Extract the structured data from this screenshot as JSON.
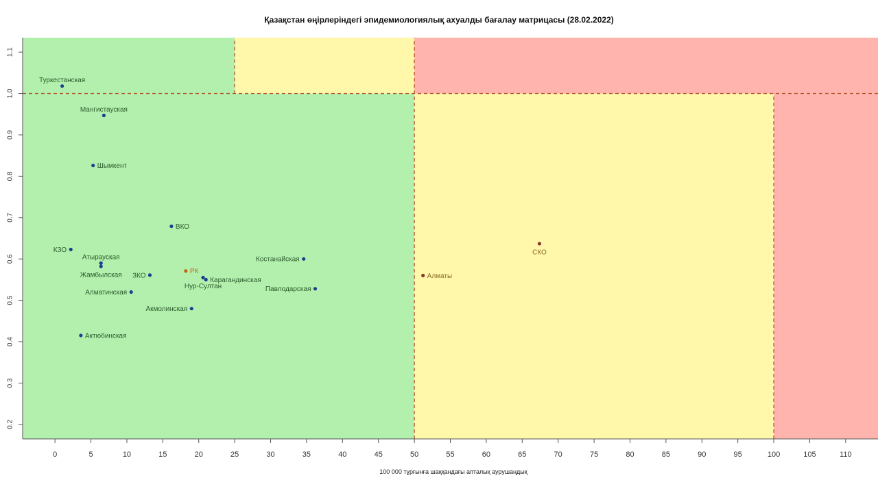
{
  "chart_data": {
    "type": "scatter",
    "title": "Қазақстан өңірлеріндегі эпидемиологиялық ахуалды бағалау матрицасы  (28.02.2022)",
    "xlabel": "100 000 тұрғынға шаққандағы апталық аурушаңдық",
    "ylabel": "",
    "xlim": [
      -4.5,
      114.5
    ],
    "ylim": [
      0.165,
      1.135
    ],
    "x_ticks": [
      0,
      5,
      10,
      15,
      20,
      25,
      30,
      35,
      40,
      45,
      50,
      55,
      60,
      65,
      70,
      75,
      80,
      85,
      90,
      95,
      100,
      105,
      110
    ],
    "y_ticks": [
      0.2,
      0.3,
      0.4,
      0.5,
      0.6,
      0.7,
      0.8,
      0.9,
      1.0,
      1.1
    ],
    "grid": false,
    "zones": [
      {
        "x": [
          -4.5,
          50
        ],
        "y": [
          0.165,
          1.0
        ],
        "color": "#b3f0ad"
      },
      {
        "x": [
          -4.5,
          25
        ],
        "y": [
          1.0,
          1.135
        ],
        "color": "#b3f0ad"
      },
      {
        "x": [
          25,
          50
        ],
        "y": [
          1.0,
          1.135
        ],
        "color": "#fff8aa"
      },
      {
        "x": [
          50,
          100
        ],
        "y": [
          0.165,
          1.0
        ],
        "color": "#fff8aa"
      },
      {
        "x": [
          50,
          114.5
        ],
        "y": [
          1.0,
          1.135
        ],
        "color": "#ffb5ae"
      },
      {
        "x": [
          100,
          114.5
        ],
        "y": [
          0.165,
          1.0
        ],
        "color": "#ffb5ae"
      }
    ],
    "dashed_lines": [
      {
        "orientation": "h",
        "value": 1.0,
        "from": -4.5,
        "to": 114.5
      },
      {
        "orientation": "v",
        "value": 25,
        "from": 1.0,
        "to": 1.135
      },
      {
        "orientation": "v",
        "value": 50,
        "from": 0.165,
        "to": 1.135
      },
      {
        "orientation": "v",
        "value": 100,
        "from": 0.165,
        "to": 1.0
      }
    ],
    "points": [
      {
        "label": "Туркестанская",
        "x": 1.0,
        "y": 1.018,
        "color": "#1a3f8f",
        "label_color": "#2b5a2b",
        "label_pos": "above"
      },
      {
        "label": "Мангистауская",
        "x": 6.8,
        "y": 0.947,
        "color": "#1a3f8f",
        "label_color": "#2b5a2b",
        "label_pos": "above"
      },
      {
        "label": "Шымкент",
        "x": 5.3,
        "y": 0.826,
        "color": "#1a3f8f",
        "label_color": "#2b5a2b",
        "label_pos": "right"
      },
      {
        "label": "ВКО",
        "x": 16.2,
        "y": 0.679,
        "color": "#1a3f8f",
        "label_color": "#2b5a2b",
        "label_pos": "right"
      },
      {
        "label": "КЗО",
        "x": 2.2,
        "y": 0.623,
        "color": "#1a3f8f",
        "label_color": "#2b5a2b",
        "label_pos": "left"
      },
      {
        "label": "Атырауская",
        "x": 6.4,
        "y": 0.59,
        "color": "#1a3f8f",
        "label_color": "#2b5a2b",
        "label_pos": "above"
      },
      {
        "label": "Жамбылская",
        "x": 6.4,
        "y": 0.582,
        "color": "#1a3f8f",
        "label_color": "#2b5a2b",
        "label_pos": "below"
      },
      {
        "label": "Костанайская",
        "x": 34.6,
        "y": 0.6,
        "color": "#1a3f8f",
        "label_color": "#2b5a2b",
        "label_pos": "left"
      },
      {
        "label": "РК",
        "x": 18.2,
        "y": 0.571,
        "color": "#c0651e",
        "label_color": "#c0651e",
        "label_pos": "right"
      },
      {
        "label": "ЗКО",
        "x": 13.2,
        "y": 0.561,
        "color": "#1a3f8f",
        "label_color": "#2b5a2b",
        "label_pos": "left"
      },
      {
        "label": "Карагандинская",
        "x": 21.0,
        "y": 0.55,
        "color": "#1a3f8f",
        "label_color": "#2b5a2b",
        "label_pos": "right"
      },
      {
        "label": "Нур-Султан",
        "x": 20.6,
        "y": 0.555,
        "color": "#1a3f8f",
        "label_color": "#2b5a2b",
        "label_pos": "below"
      },
      {
        "label": "Павлодарская",
        "x": 36.2,
        "y": 0.528,
        "color": "#1a3f8f",
        "label_color": "#2b5a2b",
        "label_pos": "left"
      },
      {
        "label": "Алматинская",
        "x": 10.6,
        "y": 0.52,
        "color": "#1a3f8f",
        "label_color": "#2b5a2b",
        "label_pos": "left"
      },
      {
        "label": "Акмолинская",
        "x": 19.0,
        "y": 0.48,
        "color": "#1a3f8f",
        "label_color": "#2b5a2b",
        "label_pos": "left"
      },
      {
        "label": "Актюбинская",
        "x": 3.6,
        "y": 0.415,
        "color": "#1a3f8f",
        "label_color": "#2b5a2b",
        "label_pos": "right"
      },
      {
        "label": "СКО",
        "x": 67.4,
        "y": 0.637,
        "color": "#8a3a2a",
        "label_color": "#8a6a2a",
        "label_pos": "below"
      },
      {
        "label": "Алматы",
        "x": 51.2,
        "y": 0.56,
        "color": "#8a3a2a",
        "label_color": "#8a6a2a",
        "label_pos": "right"
      }
    ]
  }
}
